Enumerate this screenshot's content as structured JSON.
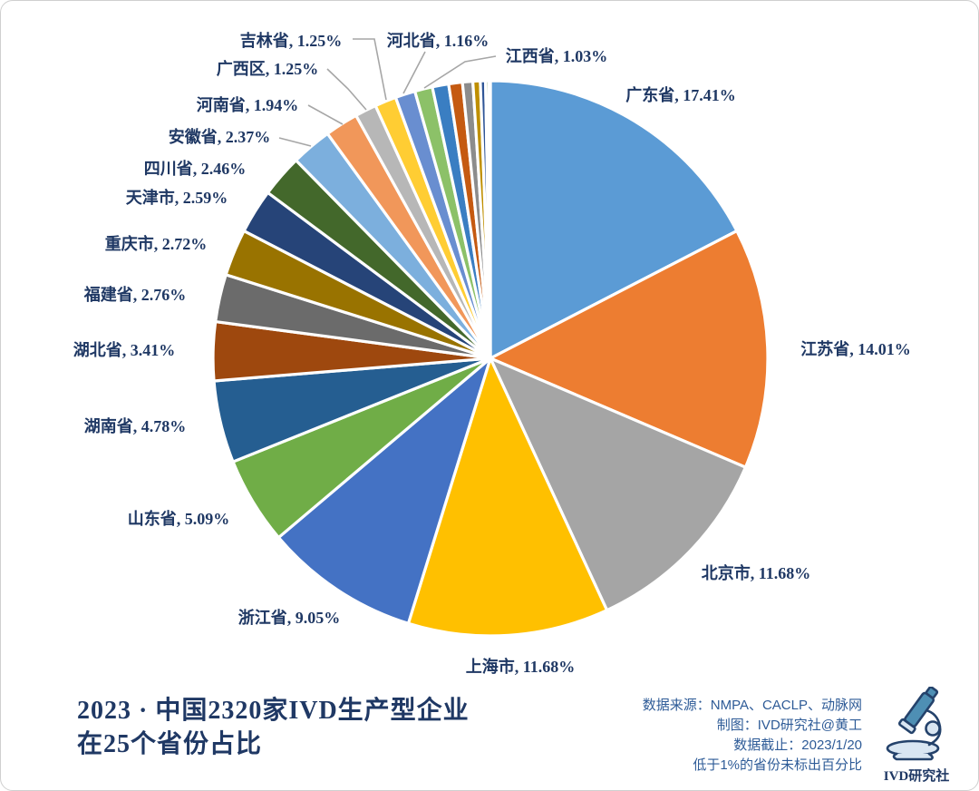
{
  "title": {
    "line1": "2023 · 中国2320家IVD生产型企业",
    "line2": "在25个省份占比"
  },
  "footer": {
    "source_line": "数据来源：NMPA、CACLP、动脉网",
    "creator_line": "制图：IVD研究社@黄工",
    "cutoff_line": "数据截止：2023/1/20",
    "note_line": "低于1%的省份未标出百分比",
    "logo_text": "IVD研究社"
  },
  "colors": {
    "label_text": "#1F3864",
    "footer_text": "#2E5B97",
    "leader_line": "#A6A6A6",
    "slice_gap": "#FFFFFF"
  },
  "chart_data": {
    "type": "pie",
    "title": "2023 · 中国2320家IVD生产型企业在25个省份占比",
    "total_companies": 2320,
    "provinces_count": 25,
    "start_angle_deg": 0,
    "direction": "clockwise",
    "legend": "none",
    "note": "低于1%的省份未标出百分比",
    "slices": [
      {
        "id": "guangdong",
        "name": "广东省",
        "value": 17.41,
        "label": "广东省, 17.41%",
        "color": "#5B9BD5",
        "labeled": true
      },
      {
        "id": "jiangsu",
        "name": "江苏省",
        "value": 14.01,
        "label": "江苏省, 14.01%",
        "color": "#ED7D31",
        "labeled": true
      },
      {
        "id": "beijing",
        "name": "北京市",
        "value": 11.68,
        "label": "北京市, 11.68%",
        "color": "#A5A5A5",
        "labeled": true
      },
      {
        "id": "shanghai",
        "name": "上海市",
        "value": 11.68,
        "label": "上海市, 11.68%",
        "color": "#FFC000",
        "labeled": true
      },
      {
        "id": "zhejiang",
        "name": "浙江省",
        "value": 9.05,
        "label": "浙江省, 9.05%",
        "color": "#4472C4",
        "labeled": true
      },
      {
        "id": "shandong",
        "name": "山东省",
        "value": 5.09,
        "label": "山东省, 5.09%",
        "color": "#70AD47",
        "labeled": true
      },
      {
        "id": "hunan",
        "name": "湖南省",
        "value": 4.78,
        "label": "湖南省, 4.78%",
        "color": "#255E91",
        "labeled": true
      },
      {
        "id": "hubei",
        "name": "湖北省",
        "value": 3.41,
        "label": "湖北省, 3.41%",
        "color": "#9E480E",
        "labeled": true
      },
      {
        "id": "fujian",
        "name": "福建省",
        "value": 2.76,
        "label": "福建省, 2.76%",
        "color": "#6B6B6B",
        "labeled": true
      },
      {
        "id": "chongqing",
        "name": "重庆市",
        "value": 2.72,
        "label": "重庆市, 2.72%",
        "color": "#997300",
        "labeled": true
      },
      {
        "id": "tianjin",
        "name": "天津市",
        "value": 2.59,
        "label": "天津市, 2.59%",
        "color": "#264478",
        "labeled": true
      },
      {
        "id": "sichuan",
        "name": "四川省",
        "value": 2.46,
        "label": "四川省, 2.46%",
        "color": "#43682B",
        "labeled": true
      },
      {
        "id": "anhui",
        "name": "安徽省",
        "value": 2.37,
        "label": "安徽省, 2.37%",
        "color": "#7CAFDD",
        "labeled": true
      },
      {
        "id": "henan",
        "name": "河南省",
        "value": 1.94,
        "label": "河南省, 1.94%",
        "color": "#F1975A",
        "labeled": true
      },
      {
        "id": "guangxi",
        "name": "广西区",
        "value": 1.25,
        "label": "广西区, 1.25%",
        "color": "#B7B7B7",
        "labeled": true
      },
      {
        "id": "jilin",
        "name": "吉林省",
        "value": 1.25,
        "label": "吉林省, 1.25%",
        "color": "#FFCD33",
        "labeled": true
      },
      {
        "id": "hebei",
        "name": "河北省",
        "value": 1.16,
        "label": "河北省, 1.16%",
        "color": "#698ED0",
        "labeled": true
      },
      {
        "id": "jiangxi",
        "name": "江西省",
        "value": 1.03,
        "label": "江西省, 1.03%",
        "color": "#8CC168",
        "labeled": true
      },
      {
        "id": "unlabeled-1",
        "name": "",
        "value": 0.95,
        "label": "",
        "color": "#3A7EC2",
        "labeled": false,
        "estimated": true
      },
      {
        "id": "unlabeled-2",
        "name": "",
        "value": 0.8,
        "label": "",
        "color": "#C55A11",
        "labeled": false,
        "estimated": true
      },
      {
        "id": "unlabeled-3",
        "name": "",
        "value": 0.6,
        "label": "",
        "color": "#8C8C8C",
        "labeled": false,
        "estimated": true
      },
      {
        "id": "unlabeled-4",
        "name": "",
        "value": 0.43,
        "label": "",
        "color": "#BF8F00",
        "labeled": false,
        "estimated": true
      },
      {
        "id": "unlabeled-5",
        "name": "",
        "value": 0.3,
        "label": "",
        "color": "#2F5597",
        "labeled": false,
        "estimated": true
      },
      {
        "id": "unlabeled-6",
        "name": "",
        "value": 0.18,
        "label": "",
        "color": "#538135",
        "labeled": false,
        "estimated": true
      },
      {
        "id": "unlabeled-7",
        "name": "",
        "value": 0.1,
        "label": "",
        "color": "#9DC3E6",
        "labeled": false,
        "estimated": true
      }
    ]
  }
}
